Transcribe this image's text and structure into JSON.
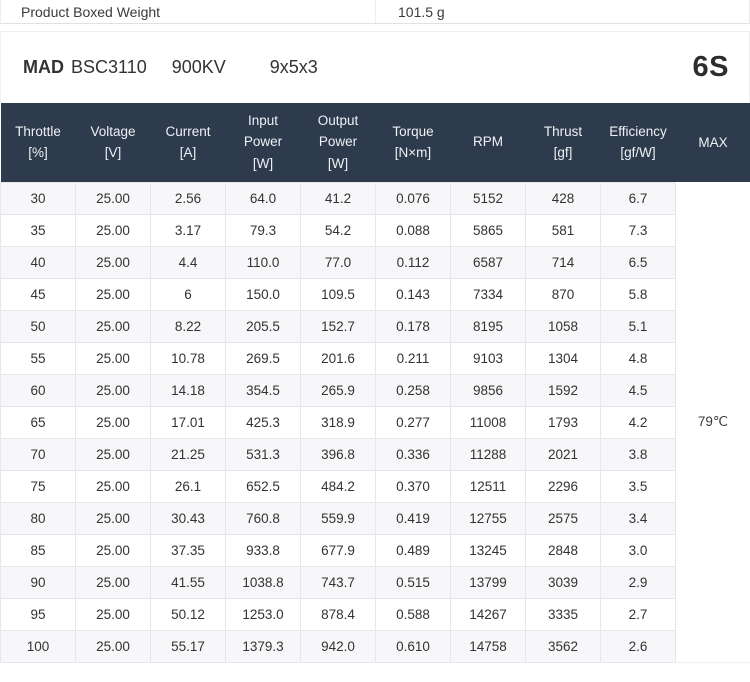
{
  "spec": {
    "label": "Product Boxed Weight",
    "value": "101.5 g"
  },
  "title": {
    "brand": "MAD",
    "model": "BSC3110",
    "kv": "900KV",
    "propeller": "9x5x3",
    "battery": "6S"
  },
  "table": {
    "columns": [
      {
        "id": "throttle",
        "lines": [
          "Throttle",
          "[%]"
        ]
      },
      {
        "id": "voltage",
        "lines": [
          "Voltage",
          "[V]"
        ]
      },
      {
        "id": "current",
        "lines": [
          "Current",
          "[A]"
        ]
      },
      {
        "id": "input-power",
        "lines": [
          "Input",
          "Power",
          "[W]"
        ]
      },
      {
        "id": "output-power",
        "lines": [
          "Output",
          "Power",
          "[W]"
        ]
      },
      {
        "id": "torque",
        "lines": [
          "Torque",
          "[N×m]"
        ]
      },
      {
        "id": "rpm",
        "lines": [
          "RPM"
        ]
      },
      {
        "id": "thrust",
        "lines": [
          "Thrust",
          "[gf]"
        ]
      },
      {
        "id": "efficiency",
        "lines": [
          "Efficiency",
          "[gf/W]"
        ]
      },
      {
        "id": "max",
        "lines": [
          "MAX"
        ]
      }
    ],
    "rows": [
      [
        "30",
        "25.00",
        "2.56",
        "64.0",
        "41.2",
        "0.076",
        "5152",
        "428",
        "6.7"
      ],
      [
        "35",
        "25.00",
        "3.17",
        "79.3",
        "54.2",
        "0.088",
        "5865",
        "581",
        "7.3"
      ],
      [
        "40",
        "25.00",
        "4.4",
        "110.0",
        "77.0",
        "0.112",
        "6587",
        "714",
        "6.5"
      ],
      [
        "45",
        "25.00",
        "6",
        "150.0",
        "109.5",
        "0.143",
        "7334",
        "870",
        "5.8"
      ],
      [
        "50",
        "25.00",
        "8.22",
        "205.5",
        "152.7",
        "0.178",
        "8195",
        "1058",
        "5.1"
      ],
      [
        "55",
        "25.00",
        "10.78",
        "269.5",
        "201.6",
        "0.211",
        "9103",
        "1304",
        "4.8"
      ],
      [
        "60",
        "25.00",
        "14.18",
        "354.5",
        "265.9",
        "0.258",
        "9856",
        "1592",
        "4.5"
      ],
      [
        "65",
        "25.00",
        "17.01",
        "425.3",
        "318.9",
        "0.277",
        "11008",
        "1793",
        "4.2"
      ],
      [
        "70",
        "25.00",
        "21.25",
        "531.3",
        "396.8",
        "0.336",
        "11288",
        "2021",
        "3.8"
      ],
      [
        "75",
        "25.00",
        "26.1",
        "652.5",
        "484.2",
        "0.370",
        "12511",
        "2296",
        "3.5"
      ],
      [
        "80",
        "25.00",
        "30.43",
        "760.8",
        "559.9",
        "0.419",
        "12755",
        "2575",
        "3.4"
      ],
      [
        "85",
        "25.00",
        "37.35",
        "933.8",
        "677.9",
        "0.489",
        "13245",
        "2848",
        "3.0"
      ],
      [
        "90",
        "25.00",
        "41.55",
        "1038.8",
        "743.7",
        "0.515",
        "13799",
        "3039",
        "2.9"
      ],
      [
        "95",
        "25.00",
        "50.12",
        "1253.0",
        "878.4",
        "0.588",
        "14267",
        "3335",
        "2.7"
      ],
      [
        "100",
        "25.00",
        "55.17",
        "1379.3",
        "942.0",
        "0.610",
        "14758",
        "3562",
        "2.6"
      ]
    ],
    "max_temperature": "79℃"
  },
  "colors": {
    "header_bg": "#2e3b4d",
    "header_text": "#eef1f5",
    "row_alt": "#f7f7f9",
    "border": "#e7e7e9"
  }
}
